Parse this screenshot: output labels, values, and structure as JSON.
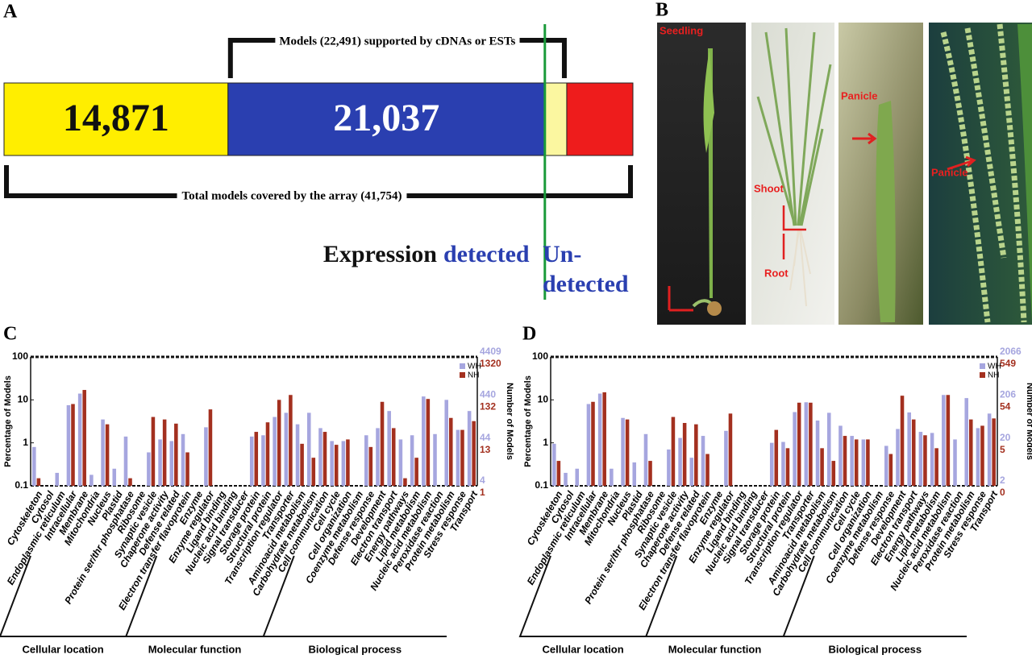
{
  "panel_labels": [
    "A",
    "B",
    "C",
    "D"
  ],
  "panel_a": {
    "segments": [
      {
        "value": 14871,
        "label": "14,871",
        "color": "#ffee00",
        "text_color": "#111111"
      },
      {
        "value": 21037,
        "label": "21,037",
        "color": "#2a3fb0",
        "text_color": "#ffffff"
      },
      {
        "value": 1454,
        "color": "#fbf7a0"
      },
      {
        "value": 4392,
        "color": "#ee1c1c"
      }
    ],
    "supported_label": "Models (22,491) supported by cDNAs or ESTs",
    "total_label": "Total models covered by the array (41,754)",
    "expression": "Expression",
    "detected": "detected",
    "undetected_1": "Un-",
    "undetected_2": "detected"
  },
  "panel_b": {
    "labels": [
      "Seedling",
      "Shoot",
      "Root",
      "Panicle",
      "Panicle"
    ]
  },
  "chart_data": [
    {
      "type": "bar",
      "ylabel": "Percentage of Models",
      "y2label": "Number of Models",
      "yscale": "log",
      "ylim": [
        0.1,
        100
      ],
      "yticks": [
        0.1,
        1,
        10,
        100
      ],
      "groups": [
        {
          "name": "Cellular location",
          "categories": [
            "Cytoskeleton",
            "Cytosol",
            "Endoplasmic reticulum",
            "Intracellular",
            "Membrane",
            "Mitochondria",
            "Nucleus",
            "Plastid",
            "Protein ser/thr phosphatase",
            "Ribosome",
            "Synaptic vesicle"
          ]
        },
        {
          "name": "Molecular function",
          "categories": [
            "Chaperone activity",
            "Defense related",
            "Electron transfer flavoprotein",
            "Enzyme",
            "Enzyme regulator",
            "Ligand binding",
            "Nucleic acid binding",
            "Signal transducer",
            "Storage protein",
            "Structural protein",
            "Transcription regulator",
            "Transporter"
          ]
        },
        {
          "name": "Biological process",
          "categories": [
            "Aminoacid metabolism",
            "Carbohydrate metabolism",
            "Cell communication",
            "Cell cycle",
            "Cell organization",
            "Coenzyme metabolism",
            "Defense response",
            "Development",
            "Electron transport",
            "Energy pathways",
            "Lipid metabolism",
            "Nucleic acid metabolism",
            "Peroxidase reaction",
            "Protein metabolism",
            "Stress response",
            "Transport"
          ]
        }
      ],
      "series": [
        {
          "name": "WH",
          "color": "#a6a6df",
          "model_ticks": [
            4,
            44,
            440,
            4409
          ],
          "values": [
            0.8,
            null,
            0.2,
            7.5,
            14,
            0.18,
            3.5,
            0.25,
            1.4,
            null,
            0.6,
            1.2,
            1.1,
            1.6,
            null,
            2.3,
            null,
            null,
            null,
            1.4,
            1.5,
            4,
            5,
            2.7,
            5,
            2.2,
            1.1,
            1.1,
            null,
            1.5,
            2.2,
            5.5,
            1.2,
            1.5,
            12,
            1.6,
            10,
            2,
            5.5
          ]
        },
        {
          "name": "NH",
          "color": "#a3301f",
          "model_ticks": [
            1,
            13,
            132,
            1320
          ],
          "values": [
            0.15,
            null,
            null,
            8,
            17,
            null,
            2.7,
            null,
            0.15,
            null,
            4,
            3.5,
            2.8,
            0.6,
            null,
            6,
            null,
            null,
            null,
            1.8,
            3,
            10,
            13,
            0.95,
            0.45,
            1.8,
            0.9,
            1.2,
            null,
            0.8,
            9,
            2.2,
            0.15,
            0.45,
            10.5,
            null,
            3.8,
            2,
            3.2
          ]
        }
      ]
    },
    {
      "type": "bar",
      "ylabel": "Percentage of Models",
      "y2label": "Number of Models",
      "yscale": "log",
      "ylim": [
        0.1,
        100
      ],
      "yticks": [
        0.1,
        1,
        10,
        100
      ],
      "groups": [
        {
          "name": "Cellular location",
          "categories": [
            "Cytoskeleton",
            "Cytosol",
            "Endoplasmic reticulum",
            "Intracellular",
            "Membrane",
            "Mitochondria",
            "Nucleus",
            "Plastid",
            "Protein ser/thr phosphatase",
            "Ribosome",
            "Synaptic vesicle"
          ]
        },
        {
          "name": "Molecular function",
          "categories": [
            "Chaperone activity",
            "Defense related",
            "Electron transfer flavoprotein",
            "Enzyme",
            "Enzyme regulator",
            "Ligand binding",
            "Nucleic acid binding",
            "Signal transducer",
            "Storage protein",
            "Structural protein",
            "Transcription regulator",
            "Transporter"
          ]
        },
        {
          "name": "Biological process",
          "categories": [
            "Aminoacid metabolism",
            "Carbohydrate metabolism",
            "Cell communication",
            "Cell cycle",
            "Cell organization",
            "Coenzyme metabolism",
            "Defense response",
            "Development",
            "Electron transport",
            "Energy pathways",
            "Lipid metabolism",
            "Nucleic acid metabolism",
            "Peroxidase reaction",
            "Protein metabolism",
            "Stress response",
            "Transport"
          ]
        }
      ],
      "series": [
        {
          "name": "WH",
          "color": "#a6a6df",
          "model_ticks": [
            2,
            20,
            206,
            2066
          ],
          "values": [
            0.95,
            0.2,
            0.25,
            8,
            14,
            0.25,
            3.8,
            0.35,
            1.6,
            null,
            0.7,
            1.3,
            0.45,
            1.45,
            null,
            1.9,
            null,
            null,
            null,
            1,
            1.05,
            5.2,
            8.8,
            3.3,
            5,
            2.5,
            1.45,
            1.2,
            null,
            0.85,
            2.1,
            5.1,
            1.8,
            1.7,
            13,
            1.2,
            11,
            2.2,
            4.8
          ]
        },
        {
          "name": "NH",
          "color": "#a3301f",
          "model_ticks": [
            0,
            5,
            54,
            549
          ],
          "values": [
            0.38,
            null,
            null,
            9,
            15,
            null,
            3.5,
            null,
            0.38,
            null,
            4,
            2.9,
            2.7,
            0.55,
            null,
            4.8,
            null,
            null,
            null,
            2,
            0.75,
            8.6,
            8.6,
            0.75,
            0.38,
            1.45,
            1.2,
            1.2,
            null,
            0.55,
            12.5,
            3.5,
            1.5,
            0.75,
            13,
            null,
            3.5,
            2.5,
            3.7
          ]
        }
      ]
    }
  ]
}
